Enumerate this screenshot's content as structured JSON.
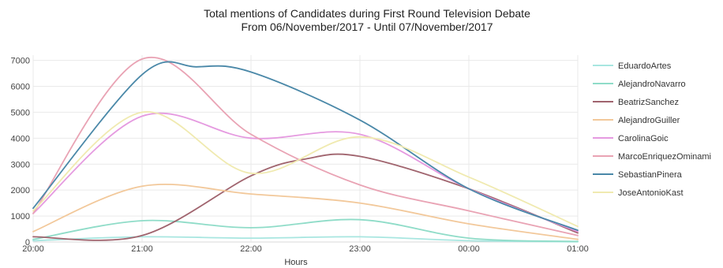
{
  "chart_data": {
    "type": "line",
    "title": "Total mentions of Candidates during First Round Television Debate",
    "subtitle": "From 06/November/2017 - Until 07/November/2017",
    "xlabel": "Hours",
    "ylabel": "",
    "categories": [
      "20:00",
      "21:00",
      "22:00",
      "23:00",
      "00:00",
      "01:00"
    ],
    "ylim": [
      0,
      7200
    ],
    "yticks": [
      0,
      1000,
      2000,
      3000,
      4000,
      5000,
      6000,
      7000
    ],
    "grid": true,
    "legend_position": "right",
    "series": [
      {
        "name": "EduardoArtes",
        "color": "#a8e6e0",
        "x": [
          0,
          1,
          2,
          3,
          4,
          5
        ],
        "values": [
          50,
          200,
          150,
          200,
          50,
          10
        ]
      },
      {
        "name": "AlejandroNavarro",
        "color": "#8fdcc8",
        "x": [
          0,
          1,
          2,
          3,
          4,
          5
        ],
        "values": [
          100,
          820,
          550,
          860,
          150,
          20
        ]
      },
      {
        "name": "BeatrizSanchez",
        "color": "#a0646e",
        "x": [
          0,
          1,
          2,
          2.5,
          3,
          4,
          5
        ],
        "values": [
          200,
          250,
          2550,
          3200,
          3300,
          2050,
          350
        ]
      },
      {
        "name": "AlejandroGuiller",
        "color": "#f2c89a",
        "x": [
          0,
          1,
          2,
          3,
          4,
          5
        ],
        "values": [
          400,
          2150,
          1850,
          1500,
          700,
          100
        ]
      },
      {
        "name": "CarolinaGoic",
        "color": "#e59ae0",
        "x": [
          0,
          1,
          2,
          3,
          4,
          5
        ],
        "values": [
          1100,
          4850,
          4000,
          4150,
          2050,
          400
        ]
      },
      {
        "name": "MarcoEnriquezOminami",
        "color": "#e9a3b4",
        "x": [
          0,
          1,
          2,
          3,
          4,
          5
        ],
        "values": [
          1100,
          7050,
          4150,
          2200,
          1200,
          250
        ]
      },
      {
        "name": "SebastianPinera",
        "color": "#4a88a8",
        "x": [
          0,
          1,
          1.5,
          2,
          3,
          4,
          5
        ],
        "values": [
          1300,
          6450,
          6750,
          6550,
          4700,
          2050,
          450
        ]
      },
      {
        "name": "JoseAntonioKast",
        "color": "#f0eab0",
        "x": [
          0,
          1,
          2,
          3,
          4,
          5
        ],
        "values": [
          1200,
          5000,
          2650,
          4050,
          2500,
          600
        ]
      }
    ]
  }
}
